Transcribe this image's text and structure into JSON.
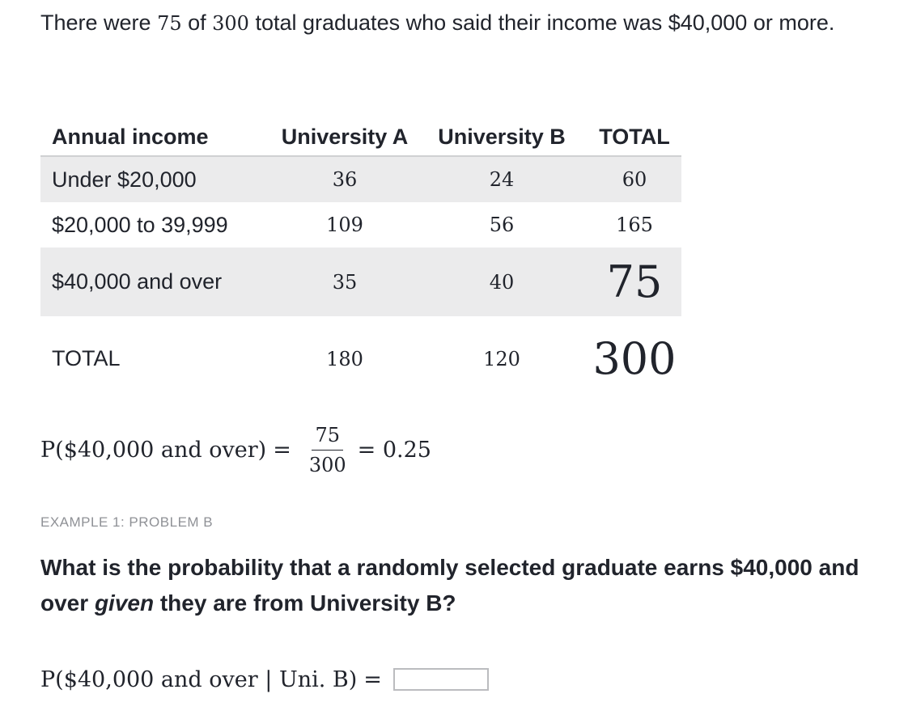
{
  "intro": {
    "before": "There were ",
    "count": "75",
    "middle": " of ",
    "total": "300",
    "after": " total graduates who said their income was $40,000 or more."
  },
  "table": {
    "headers": [
      "Annual income",
      "University A",
      "University B",
      "TOTAL"
    ],
    "rows": [
      {
        "label": "Under $20,000",
        "a": "36",
        "b": "24",
        "total": "60"
      },
      {
        "label": "$20,000 to 39,999",
        "a": "109",
        "b": "56",
        "total": "165"
      },
      {
        "label": "$40,000 and over",
        "a": "35",
        "b": "40",
        "total": "75"
      },
      {
        "label": "TOTAL",
        "a": "180",
        "b": "120",
        "total": "300"
      }
    ]
  },
  "formula1": {
    "lhs": "P($40,000 and over)",
    "eq": "=",
    "numerator": "75",
    "denominator": "300",
    "result": "= 0.25"
  },
  "example_label": "EXAMPLE 1: PROBLEM B",
  "question": {
    "before": "What is the probability that a randomly selected graduate earns $40,000 and over ",
    "emphasis": "given",
    "after": " they are from University B?"
  },
  "formula2": {
    "lhs": "P($40,000 and over | Uni. B)",
    "eq": "=",
    "answer_value": ""
  }
}
